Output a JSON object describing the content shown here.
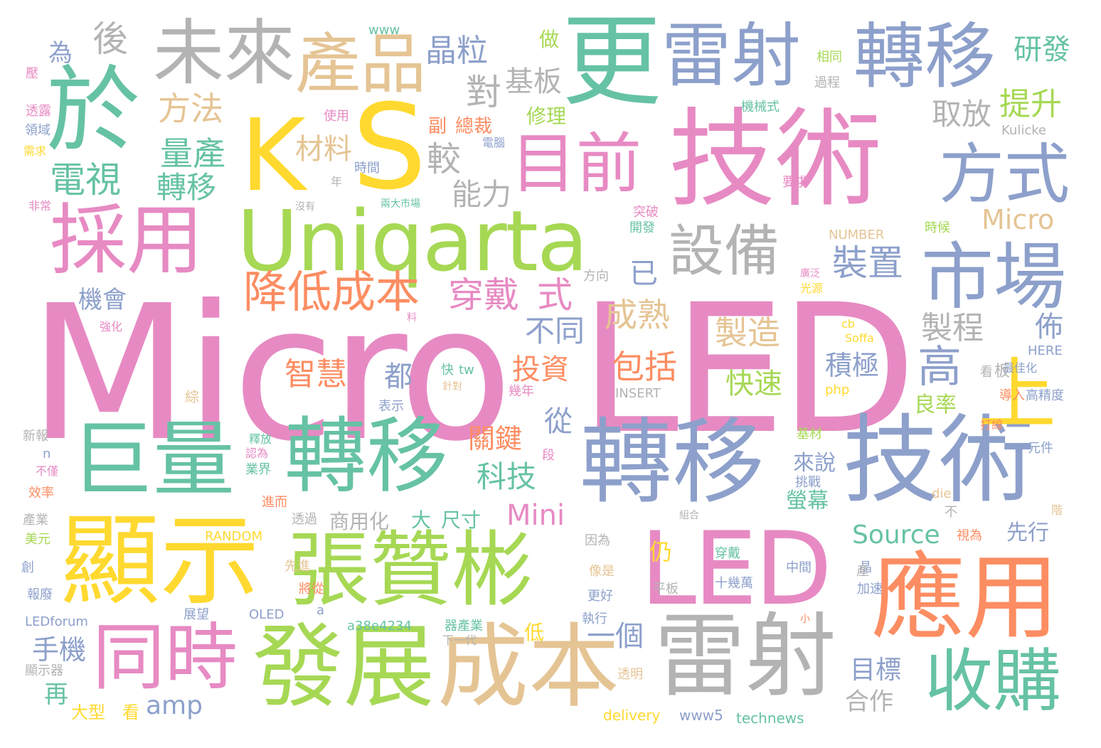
{
  "palette": {
    "pink": "#e78ac3",
    "teal": "#66c2a5",
    "blue": "#8da0cb",
    "green": "#a6d854",
    "yellow": "#ffd92f",
    "orange": "#fc8d62",
    "beige": "#e5c494",
    "grey": "#b3b3b3",
    "background": "#ffffff"
  },
  "words": {
    "micro": "Micro",
    "led_big": "LED",
    "k": "K",
    "s": "S",
    "uniqarta": "Uniqarta",
    "tech_top": "技術",
    "tech_right": "技術",
    "yu": "於",
    "weilai": "未來",
    "chanpin": "產品",
    "geng": "更",
    "leishe_top": "雷射",
    "zhuanyi_top": "轉移",
    "mubiao_mujian": "目前",
    "fangshi": "方式",
    "caiyong": "採用",
    "shichang": "市場",
    "shebei": "設備",
    "xianshi": "顯示",
    "zhangzanbin": "張贊彬",
    "led_mid": "LED",
    "yingyong": "應用",
    "juliang": "巨量",
    "zhuanyi_mid": "轉移",
    "zhuanyi_right": "轉移",
    "shang": "上",
    "tongshi": "同時",
    "fazhan": "發展",
    "chengben": "成本",
    "leishe_bottom": "雷射",
    "shougou": "收購",
    "jiangdi": "降低成本",
    "chuandai": "穿戴",
    "shi": "式",
    "micro_small": "Micro",
    "mini": "Mini",
    "source": "Source",
    "zhuangzhi": "裝置",
    "jingli": "晶粒",
    "hou": "後",
    "wei": "為",
    "fangfa": "方法",
    "liangchan": "量產",
    "dianshi": "電視",
    "zhuanyi_small": "轉移",
    "cailiao": "材料",
    "jiao": "較",
    "dui": "對",
    "jiban": "基板",
    "nengli": "能力",
    "yanfa": "研發",
    "tisheng": "提升",
    "qufang": "取放",
    "yi": "已",
    "chengshu": "成熟",
    "butong": "不同",
    "zhizao": "製造",
    "zhicheng": "製程",
    "gao": "高",
    "fo": "佈",
    "baokuo": "包括",
    "touzi": "投資",
    "zhihui": "智慧",
    "dou": "都",
    "jiji": "積極",
    "kuaisu": "快速",
    "cong": "從",
    "guanjian": "關鍵",
    "keji": "科技",
    "jihui": "機會",
    "shouji": "手機",
    "zai": "再",
    "amp": "amp",
    "dayixing": "大型",
    "kan": "看",
    "yige": "一個",
    "di": "低",
    "mubiao": "目標",
    "hezuo": "合作",
    "lianglv": "良率",
    "yingmu": "螢幕",
    "laishuo": "來說",
    "shangyonghua": "商用化",
    "da": "大",
    "chicun": "尺寸",
    "xianxing": "先行",
    "reng": "仍",
    "zuo": "做",
    "xiuli": "修理",
    "zongcai": "總裁",
    "fu": "副",
    "www": "www",
    "delivery": "delivery",
    "technews": "technews",
    "www5": "www5",
    "ledforum": "LEDforum",
    "oled": "OLED",
    "a38": "a38e4234",
    "random": "RANDOM",
    "insert": "INSERT",
    "number": "NUMBER",
    "kulicke": "Kulicke",
    "here": "HERE",
    "soffa": "Soffa",
    "cb": "cb",
    "php": "php",
    "die": "die",
    "tw": "tw",
    "n": "n",
    "a": "a",
    "kuai": "快",
    "gaojingdu": "高精度",
    "yuanjian": "元件",
    "jisuo": "機械式",
    "guocheng": "過程",
    "xiangtong": "相同",
    "shiyong": "使用",
    "diannao": "電腦",
    "shijian": "時間",
    "nian": "年",
    "yaoqiu": "要求",
    "shihou": "時候",
    "tupo": "突破",
    "kaifa": "開發",
    "fangxiang": "方向",
    "guangyuan": "光源",
    "guangfan": "廣泛",
    "zuijiahua": "最佳化",
    "daoru": "導入",
    "kan2": "看",
    "ban": "板",
    "dada": "打線",
    "jicai": "基材",
    "tiaozhan": "挑戰",
    "bu": "不",
    "shiwei": "視為",
    "jiasu": "加速",
    "zhongjian": "中間",
    "shijiwan": "十幾萬",
    "pingban": "平板",
    "chuandai2": "穿戴",
    "yinwei": "因為",
    "xiangshi": "像是",
    "genghao": "更好",
    "zhixing": "執行",
    "touming": "透明",
    "jinian": "幾年",
    "qichanye": "器產業",
    "xiayidai": "下一代",
    "zhanwang": "展望",
    "jiangcong": "將從",
    "xianjin": "先進",
    "jinnger": "進而",
    "touguo": "透過",
    "yejie": "業界",
    "renwei": "認為",
    "shifang": "釋放",
    "biaoshi": "表示",
    "zhendui": "針對",
    "xiaolv": "效率",
    "bujin": "不僅",
    "xinbao": "新報",
    "chanye": "產業",
    "meiyuan": "美元",
    "chuang": "創",
    "baofei": "報廢",
    "xianshiqi": "顯示器",
    "feichang": "非常",
    "xuqiu": "需求",
    "lingyu": "領域",
    "toulu": "透露",
    "ya": "壓",
    "qianghua": "強化",
    "liangdashichang": "兩大市場",
    "meiyou": "沒有",
    "zu": "綜",
    "zuhe": "組合",
    "duan": "段",
    "liao": "料",
    "xiao": "小",
    "jing": "晶",
    "chan": "產",
    "jie": "階"
  }
}
